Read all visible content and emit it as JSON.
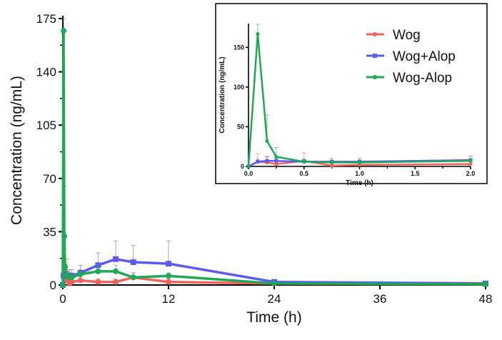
{
  "chart_data": [
    {
      "type": "line",
      "xlabel": "Time (h)",
      "ylabel": "Concentration (ng/mL)",
      "xlim": [
        0,
        48
      ],
      "ylim": [
        0,
        175
      ],
      "xticks": [
        0,
        12,
        24,
        36,
        48
      ],
      "yticks": [
        0,
        35,
        70,
        105,
        140,
        175
      ],
      "grid": false,
      "error_bars": true,
      "x": [
        0,
        0.083,
        0.167,
        0.25,
        0.5,
        0.75,
        1,
        2,
        4,
        6,
        8,
        12,
        24,
        48
      ],
      "series": [
        {
          "name": "Wog",
          "color": "#f0625a",
          "marker": "circle",
          "values": [
            0,
            6,
            5,
            3,
            7,
            1,
            2,
            3,
            2,
            2,
            5,
            2,
            1,
            0.5
          ],
          "sd": [
            0,
            10,
            8,
            3,
            10,
            2,
            2,
            3,
            2,
            2,
            3,
            2,
            1,
            0.5
          ]
        },
        {
          "name": "Wog+Alop",
          "color": "#5b5bf0",
          "marker": "square",
          "values": [
            0,
            6,
            7,
            7,
            6,
            6,
            6,
            8,
            13,
            17,
            15,
            14,
            2,
            1
          ],
          "sd": [
            0,
            3,
            5,
            3,
            3,
            4,
            4,
            5,
            8,
            12,
            11,
            15,
            1,
            1
          ]
        },
        {
          "name": "Wog-Alop",
          "color": "#1fa855",
          "marker": "circle",
          "values": [
            0,
            167,
            32,
            12,
            6,
            5,
            5,
            7,
            9,
            9,
            5,
            6,
            1,
            0.5
          ],
          "sd": [
            0,
            12,
            33,
            12,
            3,
            3,
            3,
            3,
            4,
            4,
            3,
            2,
            1,
            0.5
          ]
        }
      ],
      "legend": "top-right (inside inset)"
    },
    {
      "type": "line",
      "role": "inset",
      "xlabel": "Time (h)",
      "ylabel": "Concentration (ng/mL)",
      "xlim": [
        0,
        2
      ],
      "ylim": [
        0,
        180
      ],
      "xticks": [
        "0.0",
        "0.5",
        "1.0",
        "1.5",
        "2.0"
      ],
      "yticks": [
        0,
        50,
        100,
        150
      ],
      "grid": false
    }
  ]
}
